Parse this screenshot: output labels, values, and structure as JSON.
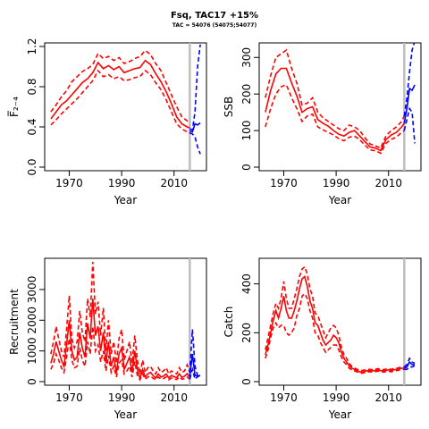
{
  "title": "Fsq, TAC17 +15%",
  "subtitle": "TAC = 54076 (54075;54077)",
  "colors": {
    "hist": "#ff0000",
    "proj": "#0000ff",
    "vline": "#bebebe"
  },
  "chart_data": [
    {
      "type": "line",
      "id": "F",
      "xlabel": "Year",
      "ylabel": "F̅₂₋₄",
      "xlim": [
        1962,
        2021
      ],
      "ylim": [
        0,
        1.2
      ],
      "xticks": [
        1970,
        1990,
        2010
      ],
      "yticks": [
        0,
        0.4,
        0.8,
        1.2
      ],
      "ytick_labels": [
        "0.0",
        "0.4",
        "0.8",
        "1.2"
      ],
      "vline": 2016,
      "hist": {
        "x": [
          1963,
          1965,
          1967,
          1969,
          1971,
          1973,
          1975,
          1977,
          1979,
          1981,
          1983,
          1985,
          1987,
          1989,
          1991,
          1993,
          1995,
          1997,
          1999,
          2001,
          2003,
          2005,
          2007,
          2009,
          2011,
          2013,
          2015,
          2016
        ],
        "median": [
          0.48,
          0.55,
          0.62,
          0.66,
          0.72,
          0.78,
          0.84,
          0.88,
          0.94,
          1.04,
          0.98,
          1.01,
          0.97,
          1.0,
          0.94,
          0.96,
          0.98,
          0.99,
          1.06,
          1.02,
          0.93,
          0.85,
          0.75,
          0.63,
          0.5,
          0.43,
          0.4,
          0.39
        ],
        "upper": [
          0.55,
          0.62,
          0.7,
          0.76,
          0.85,
          0.9,
          0.95,
          0.98,
          1.02,
          1.13,
          1.08,
          1.1,
          1.06,
          1.09,
          1.03,
          1.05,
          1.08,
          1.1,
          1.16,
          1.12,
          1.03,
          0.96,
          0.84,
          0.72,
          0.6,
          0.5,
          0.46,
          0.44
        ],
        "lower": [
          0.42,
          0.47,
          0.53,
          0.58,
          0.63,
          0.68,
          0.74,
          0.8,
          0.86,
          0.96,
          0.9,
          0.92,
          0.88,
          0.9,
          0.86,
          0.87,
          0.89,
          0.9,
          0.96,
          0.92,
          0.84,
          0.77,
          0.67,
          0.55,
          0.43,
          0.38,
          0.35,
          0.34
        ]
      },
      "proj": {
        "x": [
          2016,
          2017,
          2018,
          2019,
          2020
        ],
        "median": [
          0.36,
          0.35,
          0.43,
          0.42,
          0.44
        ],
        "upper": [
          0.38,
          0.37,
          0.55,
          1.0,
          1.22
        ],
        "lower": [
          0.34,
          0.33,
          0.3,
          0.2,
          0.13
        ]
      }
    },
    {
      "type": "line",
      "id": "SSB",
      "xlabel": "Year",
      "ylabel": "SSB",
      "xlim": [
        1962,
        2021
      ],
      "ylim": [
        0,
        330
      ],
      "xticks": [
        1970,
        1990,
        2010
      ],
      "yticks": [
        0,
        100,
        200,
        300
      ],
      "ytick_labels": [
        "0",
        "100",
        "200",
        "300"
      ],
      "vline": 2016,
      "hist": {
        "x": [
          1963,
          1965,
          1967,
          1969,
          1971,
          1973,
          1975,
          1977,
          1979,
          1981,
          1983,
          1985,
          1987,
          1989,
          1991,
          1993,
          1995,
          1997,
          1999,
          2001,
          2003,
          2005,
          2007,
          2009,
          2011,
          2013,
          2015,
          2016
        ],
        "median": [
          150,
          210,
          255,
          270,
          270,
          230,
          195,
          150,
          160,
          165,
          130,
          120,
          112,
          100,
          90,
          85,
          95,
          100,
          85,
          70,
          55,
          52,
          45,
          75,
          88,
          95,
          110,
          120
        ],
        "upper": [
          190,
          250,
          300,
          310,
          320,
          270,
          230,
          170,
          175,
          190,
          150,
          135,
          125,
          115,
          105,
          100,
          115,
          110,
          100,
          80,
          63,
          58,
          52,
          85,
          100,
          110,
          125,
          140
        ],
        "lower": [
          110,
          160,
          200,
          220,
          225,
          190,
          160,
          125,
          140,
          145,
          110,
          102,
          95,
          88,
          78,
          72,
          82,
          85,
          75,
          60,
          47,
          45,
          38,
          65,
          76,
          82,
          95,
          100
        ]
      },
      "proj": {
        "x": [
          2016,
          2017,
          2018,
          2019,
          2020
        ],
        "median": [
          120,
          160,
          215,
          210,
          225
        ],
        "upper": [
          140,
          190,
          260,
          320,
          345
        ],
        "lower": [
          100,
          130,
          160,
          150,
          65
        ]
      }
    },
    {
      "type": "line",
      "id": "Recruitment",
      "xlabel": "Year",
      "ylabel": "Recruitment",
      "xlim": [
        1962,
        2021
      ],
      "ylim": [
        0,
        3900
      ],
      "xticks": [
        1970,
        1990,
        2010
      ],
      "yticks": [
        0,
        1000,
        2000,
        3000
      ],
      "ytick_labels": [
        "0",
        "1000",
        "2000",
        "3000"
      ],
      "vline": 2016,
      "hist": {
        "x": [
          1963,
          1964,
          1965,
          1966,
          1967,
          1968,
          1969,
          1970,
          1971,
          1972,
          1973,
          1974,
          1975,
          1976,
          1977,
          1978,
          1979,
          1980,
          1981,
          1982,
          1983,
          1984,
          1985,
          1986,
          1987,
          1988,
          1989,
          1990,
          1991,
          1992,
          1993,
          1994,
          1995,
          1996,
          1997,
          1998,
          1999,
          2000,
          2001,
          2002,
          2003,
          2004,
          2005,
          2006,
          2007,
          2008,
          2009,
          2010,
          2011,
          2012,
          2013,
          2014,
          2015,
          2016
        ],
        "median": [
          600,
          900,
          1300,
          1000,
          700,
          500,
          1200,
          2000,
          1000,
          700,
          800,
          1600,
          1100,
          800,
          1900,
          1400,
          2700,
          1500,
          1800,
          1000,
          1600,
          600,
          1300,
          500,
          800,
          300,
          900,
          1100,
          400,
          600,
          800,
          300,
          1000,
          400,
          100,
          400,
          150,
          250,
          300,
          200,
          120,
          250,
          150,
          180,
          250,
          120,
          200,
          160,
          130,
          250,
          140,
          180,
          260,
          150
        ],
        "upper": [
          900,
          1300,
          1800,
          1400,
          1000,
          800,
          1700,
          2800,
          1400,
          1100,
          1300,
          2300,
          1600,
          1300,
          2700,
          2100,
          3900,
          2200,
          2600,
          1500,
          2400,
          1000,
          2000,
          900,
          1300,
          600,
          1400,
          1700,
          700,
          1000,
          1300,
          600,
          1500,
          700,
          250,
          700,
          300,
          450,
          500,
          350,
          250,
          450,
          300,
          350,
          450,
          250,
          350,
          300,
          250,
          450,
          300,
          350,
          550,
          300
        ],
        "lower": [
          400,
          600,
          900,
          700,
          450,
          300,
          800,
          1400,
          700,
          450,
          500,
          1100,
          700,
          500,
          1300,
          900,
          1800,
          1000,
          1200,
          650,
          1000,
          350,
          850,
          300,
          500,
          150,
          600,
          700,
          250,
          350,
          500,
          150,
          650,
          200,
          60,
          250,
          80,
          150,
          180,
          110,
          60,
          150,
          80,
          100,
          150,
          60,
          120,
          90,
          70,
          150,
          80,
          100,
          150,
          80
        ]
      },
      "proj": {
        "x": [
          2016,
          2017,
          2018,
          2019,
          2020
        ],
        "median": [
          150,
          900,
          200,
          180,
          200
        ],
        "upper": [
          300,
          1700,
          500,
          200,
          200
        ],
        "lower": [
          80,
          400,
          80,
          160,
          200
        ]
      }
    },
    {
      "type": "line",
      "id": "Catch",
      "xlabel": "Year",
      "ylabel": "Catch",
      "xlim": [
        1962,
        2021
      ],
      "ylim": [
        0,
        490
      ],
      "xticks": [
        1970,
        1990,
        2010
      ],
      "yticks": [
        0,
        200,
        400
      ],
      "ytick_labels": [
        "0",
        "200",
        "400"
      ],
      "vline": 2016,
      "hist": {
        "x": [
          1963,
          1964,
          1965,
          1966,
          1967,
          1968,
          1969,
          1970,
          1971,
          1972,
          1973,
          1974,
          1975,
          1976,
          1977,
          1978,
          1979,
          1980,
          1981,
          1982,
          1983,
          1984,
          1985,
          1986,
          1987,
          1988,
          1989,
          1990,
          1991,
          1992,
          1993,
          1994,
          1995,
          1996,
          1997,
          1998,
          1999,
          2000,
          2001,
          2002,
          2003,
          2004,
          2005,
          2006,
          2007,
          2008,
          2009,
          2010,
          2011,
          2012,
          2013,
          2014,
          2015,
          2016
        ],
        "median": [
          110,
          150,
          200,
          250,
          290,
          260,
          300,
          350,
          290,
          260,
          260,
          290,
          330,
          380,
          420,
          430,
          390,
          330,
          300,
          240,
          230,
          200,
          170,
          150,
          160,
          170,
          190,
          180,
          160,
          120,
          95,
          80,
          65,
          55,
          50,
          45,
          40,
          40,
          42,
          45,
          45,
          44,
          46,
          48,
          45,
          44,
          46,
          48,
          45,
          48,
          50,
          52,
          55,
          55
        ],
        "upper": [
          130,
          180,
          230,
          280,
          320,
          300,
          340,
          410,
          340,
          300,
          300,
          340,
          380,
          430,
          460,
          470,
          440,
          380,
          350,
          280,
          270,
          240,
          210,
          180,
          200,
          220,
          230,
          220,
          190,
          140,
          110,
          95,
          75,
          62,
          56,
          50,
          46,
          46,
          48,
          50,
          50,
          49,
          51,
          53,
          50,
          49,
          51,
          53,
          50,
          53,
          55,
          57,
          60,
          60
        ],
        "lower": [
          95,
          130,
          180,
          220,
          240,
          220,
          230,
          230,
          200,
          190,
          200,
          220,
          270,
          300,
          350,
          360,
          340,
          290,
          260,
          200,
          190,
          160,
          140,
          120,
          130,
          140,
          150,
          150,
          130,
          100,
          80,
          70,
          55,
          48,
          44,
          40,
          35,
          35,
          37,
          40,
          40,
          39,
          41,
          43,
          40,
          39,
          41,
          43,
          40,
          43,
          45,
          47,
          50,
          50
        ]
      },
      "proj": {
        "x": [
          2016,
          2017,
          2018,
          2019,
          2020
        ],
        "median": [
          55,
          60,
          80,
          70,
          70
        ],
        "upper": [
          60,
          70,
          95,
          80,
          75
        ],
        "lower": [
          50,
          50,
          60,
          60,
          65
        ]
      }
    }
  ]
}
